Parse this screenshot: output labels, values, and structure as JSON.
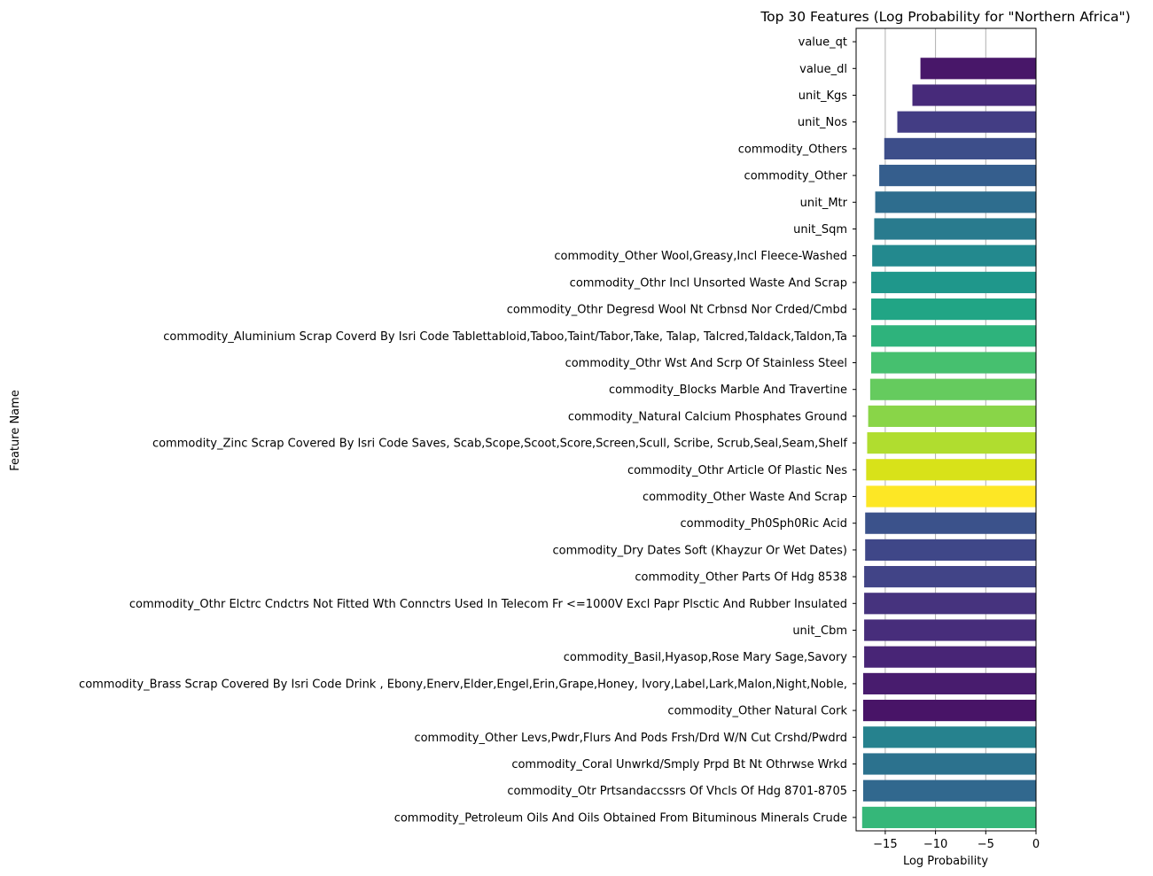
{
  "chart_data": {
    "type": "bar",
    "orientation": "horizontal",
    "title": "Top 30 Features (Log Probability for \"Northern Africa\")",
    "xlabel": "Log Probability",
    "ylabel": "Feature Name",
    "xlim": [
      -17.9,
      0
    ],
    "xticks": [
      -15,
      -10,
      -5,
      0
    ],
    "xtick_labels": [
      "−15",
      "−10",
      "−5",
      "0"
    ],
    "grid": "x",
    "palette": "viridis",
    "categories": [
      "value_qt",
      "value_dl",
      "unit_Kgs",
      "unit_Nos",
      "commodity_Others",
      "commodity_Other",
      "unit_Mtr",
      "unit_Sqm",
      "commodity_Other Wool,Greasy,Incl Fleece-Washed",
      "commodity_Othr Incl Unsorted Waste And Scrap",
      "commodity_Othr Degresd Wool Nt Crbnsd Nor Crded/Cmbd",
      "commodity_Aluminium Scrap Coverd By Isri Code Tablettabloid,Taboo,Taint/Tabor,Take, Talap, Talcred,Taldack,Taldon,Ta",
      "commodity_Othr Wst And Scrp Of Stainless Steel",
      "commodity_Blocks Marble And Travertine",
      "commodity_Natural Calcium Phosphates Ground",
      "commodity_Zinc Scrap Covered By Isri Code Saves, Scab,Scope,Scoot,Score,Screen,Scull, Scribe, Scrub,Seal,Seam,Shelf",
      "commodity_Othr Article Of Plastic Nes",
      "commodity_Other Waste And Scrap",
      "commodity_Ph0Sph0Ric Acid",
      "commodity_Dry Dates Soft (Khayzur Or Wet Dates)",
      "commodity_Other Parts Of Hdg 8538",
      "commodity_Othr Elctrc Cndctrs Not Fitted Wth Connctrs Used In Telecom Fr <=1000V Excl Papr Plsctic And Rubber Insulated",
      "unit_Cbm",
      "commodity_Basil,Hyasop,Rose Mary Sage,Savory",
      "commodity_Brass Scrap Covered By Isri Code Drink , Ebony,Enerv,Elder,Engel,Erin,Grape,Honey, Ivory,Label,Lark,Malon,Night,Noble,",
      "commodity_Other Natural Cork",
      "commodity_Other Levs,Pwdr,Flurs And Pods Frsh/Drd W/N Cut Crshd/Pwdrd",
      "commodity_Coral Unwrkd/Smply Prpd Bt Nt Othrwse Wrkd",
      "commodity_Otr Prtsandaccssrs Of Vhcls Of Hdg 8701-8705",
      "commodity_Petroleum Oils And Oils Obtained From Bituminous Minerals Crude"
    ],
    "values": [
      0,
      -11.5,
      -12.3,
      -13.8,
      -15.1,
      -15.6,
      -16.0,
      -16.1,
      -16.3,
      -16.4,
      -16.4,
      -16.4,
      -16.4,
      -16.5,
      -16.7,
      -16.8,
      -16.9,
      -16.9,
      -17.0,
      -17.0,
      -17.1,
      -17.1,
      -17.1,
      -17.1,
      -17.2,
      -17.2,
      -17.2,
      -17.2,
      -17.2,
      -17.3
    ],
    "colors": [
      "#440154",
      "#481769",
      "#472a7a",
      "#433d84",
      "#3d4e8a",
      "#355e8d",
      "#2e6d8e",
      "#297b8e",
      "#23898e",
      "#1f978b",
      "#21a585",
      "#2eb37c",
      "#46c06f",
      "#65cb5e",
      "#89d548",
      "#b0dd2f",
      "#d8e219",
      "#fde725",
      "#3b528b",
      "#3f4788",
      "#414487",
      "#46337e",
      "#472d7b",
      "#482576",
      "#481c6e",
      "#481467",
      "#26828e",
      "#2c728e",
      "#31688e",
      "#35b779"
    ]
  }
}
